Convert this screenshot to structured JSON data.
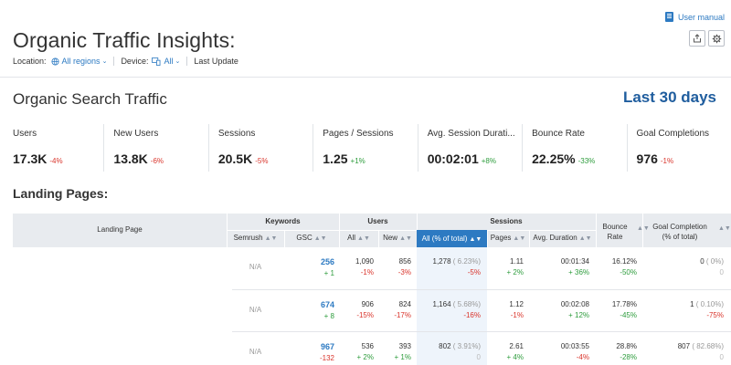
{
  "header": {
    "user_manual": "User manual",
    "title": "Organic Traffic Insights:",
    "filters": {
      "location_label": "Location:",
      "location_value": "All regions",
      "device_label": "Device:",
      "device_value": "All",
      "last_update_label": "Last Update"
    }
  },
  "summary": {
    "title": "Organic Search Traffic",
    "date_range": "Last 30 days",
    "metrics": [
      {
        "label": "Users",
        "value": "17.3K",
        "delta": "-4%",
        "trend": "neg"
      },
      {
        "label": "New Users",
        "value": "13.8K",
        "delta": "-6%",
        "trend": "neg"
      },
      {
        "label": "Sessions",
        "value": "20.5K",
        "delta": "-5%",
        "trend": "neg"
      },
      {
        "label": "Pages / Sessions",
        "value": "1.25",
        "delta": "+1%",
        "trend": "pos"
      },
      {
        "label": "Avg. Session Durati...",
        "value": "00:02:01",
        "delta": "+8%",
        "trend": "pos"
      },
      {
        "label": "Bounce Rate",
        "value": "22.25%",
        "delta": "-33%",
        "trend": "pos"
      },
      {
        "label": "Goal Completions",
        "value": "976",
        "delta": "-1%",
        "trend": "neg"
      }
    ]
  },
  "landing": {
    "title": "Landing Pages:",
    "groups": {
      "landing_page": "Landing Page",
      "keywords": "Keywords",
      "users": "Users",
      "sessions": "Sessions",
      "bounce_rate_1": "Bounce",
      "bounce_rate_2": "Rate",
      "goal_1": "Goal Completion",
      "goal_2": "(% of total)"
    },
    "columns": {
      "semrush": "Semrush",
      "gsc": "GSC",
      "all": "All",
      "new": "New",
      "sessions_all": "All (% of total)",
      "pages": "Pages",
      "avg_duration": "Avg. Duration"
    },
    "rows": [
      {
        "semrush": "N/A",
        "gsc": "256",
        "gsc_d": "+ 1",
        "users_all": "1,090",
        "users_all_d": "-1%",
        "users_new": "856",
        "users_new_d": "-3%",
        "sess": "1,278",
        "sess_pct": "( 6.23%)",
        "sess_d": "-5%",
        "pages": "1.11",
        "pages_d": "+ 2%",
        "dur": "00:01:34",
        "dur_d": "+ 36%",
        "bounce": "16.12%",
        "bounce_d": "-50%",
        "goal": "0",
        "goal_pct": "( 0%)",
        "goal_d": "0"
      },
      {
        "semrush": "N/A",
        "gsc": "674",
        "gsc_d": "+ 8",
        "users_all": "906",
        "users_all_d": "-15%",
        "users_new": "824",
        "users_new_d": "-17%",
        "sess": "1,164",
        "sess_pct": "( 5.68%)",
        "sess_d": "-16%",
        "pages": "1.12",
        "pages_d": "-1%",
        "dur": "00:02:08",
        "dur_d": "+ 12%",
        "bounce": "17.78%",
        "bounce_d": "-45%",
        "goal": "1",
        "goal_pct": "( 0.10%)",
        "goal_d": "-75%"
      },
      {
        "semrush": "N/A",
        "gsc": "967",
        "gsc_d": "-132",
        "users_all": "536",
        "users_all_d": "+ 2%",
        "users_new": "393",
        "users_new_d": "+ 1%",
        "sess": "802",
        "sess_pct": "( 3.91%)",
        "sess_d": "0",
        "pages": "2.61",
        "pages_d": "+ 4%",
        "dur": "00:03:55",
        "dur_d": "-4%",
        "bounce": "28.8%",
        "bounce_d": "-28%",
        "goal": "807",
        "goal_pct": "( 82.68%)",
        "goal_d": "0"
      }
    ]
  }
}
